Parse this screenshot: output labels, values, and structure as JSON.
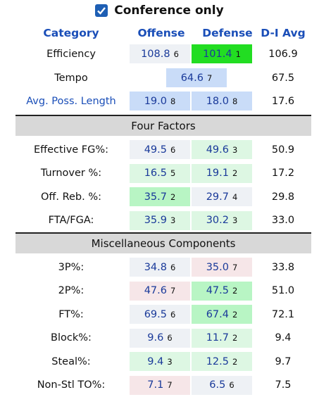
{
  "filter": {
    "label": "Conference only",
    "checked": true
  },
  "headers": {
    "category": "Category",
    "offense": "Offense",
    "defense": "Defense",
    "d1avg": "D-I Avg"
  },
  "top": {
    "efficiency": {
      "label": "Efficiency",
      "off": "108.8",
      "off_rank": "6",
      "def": "101.4",
      "def_rank": "1",
      "avg": "106.9"
    },
    "tempo": {
      "label": "Tempo",
      "val": "64.6",
      "rank": "7",
      "avg": "67.5"
    },
    "poss": {
      "label": "Avg. Poss. Length",
      "off": "19.0",
      "off_rank": "8",
      "def": "18.0",
      "def_rank": "8",
      "avg": "17.6"
    }
  },
  "four_factors": {
    "title": "Four Factors",
    "rows": [
      {
        "label": "Effective FG%:",
        "off": "49.5",
        "off_rank": "6",
        "def": "49.6",
        "def_rank": "3",
        "avg": "50.9"
      },
      {
        "label": "Turnover %:",
        "off": "16.5",
        "off_rank": "5",
        "def": "19.1",
        "def_rank": "2",
        "avg": "17.2"
      },
      {
        "label": "Off. Reb. %:",
        "off": "35.7",
        "off_rank": "2",
        "def": "29.7",
        "def_rank": "4",
        "avg": "29.8"
      },
      {
        "label": "FTA/FGA:",
        "off": "35.9",
        "off_rank": "3",
        "def": "30.2",
        "def_rank": "3",
        "avg": "33.0"
      }
    ]
  },
  "misc": {
    "title": "Miscellaneous Components",
    "rows": [
      {
        "label": "3P%:",
        "off": "34.8",
        "off_rank": "6",
        "def": "35.0",
        "def_rank": "7",
        "avg": "33.8"
      },
      {
        "label": "2P%:",
        "off": "47.6",
        "off_rank": "7",
        "def": "47.5",
        "def_rank": "2",
        "avg": "51.0"
      },
      {
        "label": "FT%:",
        "off": "69.5",
        "off_rank": "6",
        "def": "67.4",
        "def_rank": "2",
        "avg": "72.1"
      },
      {
        "label": "Block%:",
        "off": "9.6",
        "off_rank": "6",
        "def": "11.7",
        "def_rank": "2",
        "avg": "9.4"
      },
      {
        "label": "Steal%:",
        "off": "9.4",
        "off_rank": "3",
        "def": "12.5",
        "def_rank": "2",
        "avg": "9.7"
      },
      {
        "label": "Non-Stl TO%:",
        "off": "7.1",
        "off_rank": "7",
        "def": "6.5",
        "def_rank": "6",
        "avg": "7.5"
      }
    ]
  },
  "colors": {
    "rank1": "#22dd22",
    "strong_green": "#b8f5c4",
    "light_green": "#ddf7e3",
    "neutral": "#eef1f5",
    "blue": "#c9dcf8",
    "pink": "#f6e6e8"
  }
}
